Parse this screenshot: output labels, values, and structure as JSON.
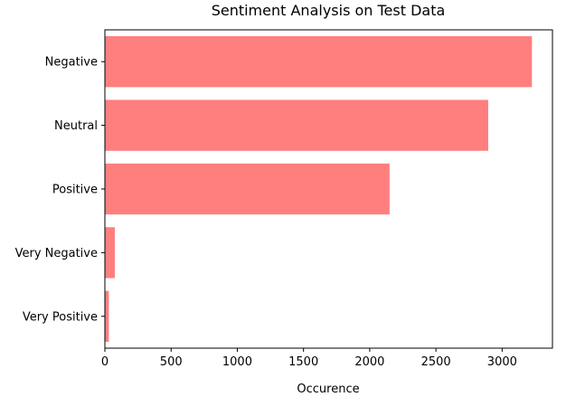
{
  "chart_data": {
    "type": "bar",
    "orientation": "horizontal",
    "title": "Sentiment Analysis on Test Data",
    "xlabel": "Occurence",
    "ylabel": "",
    "categories": [
      "Negative",
      "Neutral",
      "Positive",
      "Very Negative",
      "Very Positive"
    ],
    "values": [
      3225,
      2895,
      2150,
      75,
      30
    ],
    "xlim": [
      0,
      3380
    ],
    "xticks": [
      0,
      500,
      1000,
      1500,
      2000,
      2500,
      3000
    ],
    "bar_color": "#ff7f7f",
    "grid": false,
    "legend": "none"
  }
}
